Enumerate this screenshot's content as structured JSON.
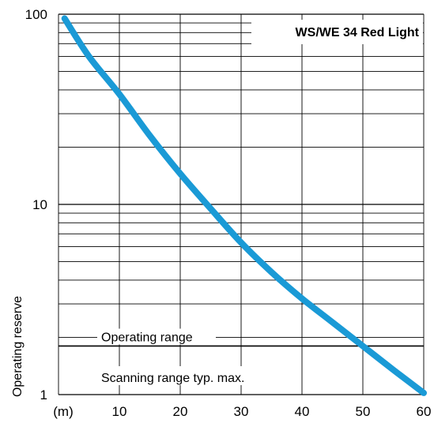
{
  "chart_data": {
    "type": "line",
    "title": "WS/WE 34 Red Light",
    "ylabel": "Operating reserve",
    "xlabel": "(m)",
    "x_unit_label": "(m)",
    "x_ticks": [
      10,
      20,
      30,
      40,
      50,
      60
    ],
    "xlim": [
      0,
      60
    ],
    "y_ticks": [
      1,
      10,
      100
    ],
    "ylim": [
      1,
      100
    ],
    "y_scale": "log",
    "grid": true,
    "series": [
      {
        "color": "#1a9ad6",
        "x": [
          1,
          5,
          10,
          15,
          20,
          25,
          30,
          35,
          40,
          45,
          50,
          55,
          60
        ],
        "y": [
          95,
          60,
          38,
          23,
          14.5,
          9.5,
          6.3,
          4.4,
          3.2,
          2.4,
          1.8,
          1.35,
          1.02
        ]
      }
    ],
    "annotations": {
      "operating_range_label": "Operating range",
      "operating_range_y": 1.8,
      "scanning_range_label": "Scanning range typ. max."
    }
  }
}
